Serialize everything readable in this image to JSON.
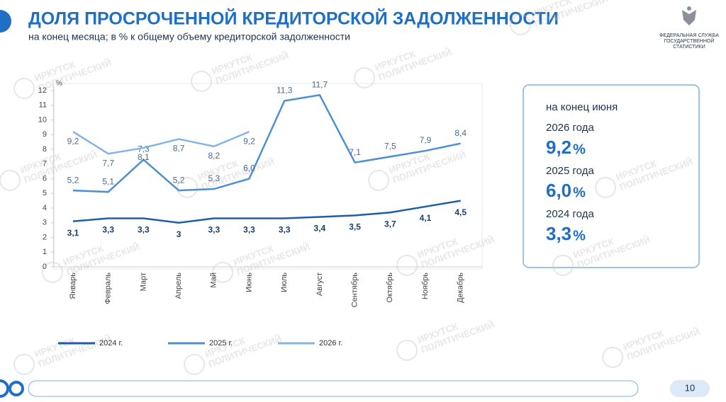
{
  "header": {
    "title": "ДОЛЯ ПРОСРОЧЕННОЙ КРЕДИТОРСКОЙ ЗАДОЛЖЕННОСТИ",
    "subtitle": "на конец месяца; в % к общему объему кредиторской задолженности",
    "logo_lines": [
      "ФЕДЕРАЛЬНАЯ СЛУЖБА",
      "ГОСУДАРСТВЕННОЙ",
      "СТАТИСТИКИ"
    ]
  },
  "chart_data": {
    "type": "line",
    "y_unit": "%",
    "categories": [
      "Январь",
      "Февраль",
      "Март",
      "Апрель",
      "Май",
      "Июнь",
      "Июль",
      "Август",
      "Сентябрь",
      "Октябрь",
      "Ноябрь",
      "Декабрь"
    ],
    "ylim": [
      0,
      12
    ],
    "yticks": [
      0,
      1,
      2,
      3,
      4,
      5,
      6,
      7,
      8,
      9,
      10,
      11,
      12
    ],
    "series": [
      {
        "name": "2024 г.",
        "color": "#1b5fa8",
        "values": [
          3.1,
          3.3,
          3.3,
          3,
          3.3,
          3.3,
          3.3,
          3.4,
          3.5,
          3.7,
          4.1,
          4.5
        ],
        "value_labels": [
          "3,1",
          "3,3",
          "3,3",
          "3",
          "3,3",
          "3,3",
          "3,3",
          "3,4",
          "3,5",
          "3,7",
          "4,1",
          "4,5"
        ]
      },
      {
        "name": "2025 г.",
        "color": "#4d8fd6",
        "values": [
          5.2,
          5.1,
          7.3,
          5.2,
          5.3,
          6.0,
          11.3,
          11.7,
          7.1,
          7.5,
          7.9,
          8.4
        ],
        "value_labels": [
          "5,2",
          "5,1",
          "7,3",
          "5,2",
          "5,3",
          "6,0",
          "11,3",
          "11,7",
          "7,1",
          "7,5",
          "7,9",
          "8,4"
        ]
      },
      {
        "name": "2026 г.",
        "color": "#82b4e6",
        "values": [
          9.2,
          7.7,
          8.1,
          8.7,
          8.2,
          9.2,
          null,
          null,
          null,
          null,
          null,
          null
        ],
        "value_labels": [
          "9,2",
          "7,7",
          "8,1",
          "8,7",
          "8,2",
          "9,2",
          null,
          null,
          null,
          null,
          null,
          null
        ]
      }
    ]
  },
  "panel": {
    "heading": "на конец июня",
    "items": [
      {
        "label": "2026 года",
        "value": "9,2",
        "unit": "%"
      },
      {
        "label": "2025 года",
        "value": "6,0",
        "unit": "%"
      },
      {
        "label": "2024 года",
        "value": "3,3",
        "unit": "%"
      }
    ]
  },
  "watermark": [
    "ИРКУТСК",
    "ПОЛИТИЧЕСКИЙ"
  ],
  "page_number": "10"
}
